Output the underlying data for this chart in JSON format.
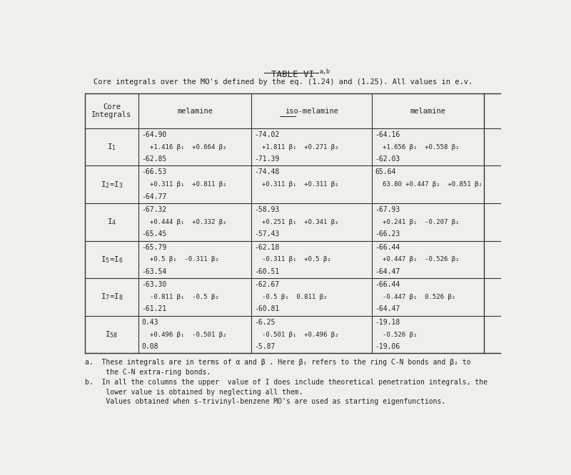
{
  "title": "TABLE VI",
  "title_superscript": "a,b",
  "subtitle": "Core integrals over the MO's defined by the eq. (1.24) and (1.25). All values in e.v.",
  "col_headers": [
    "Core\nIntegrals",
    "melamine",
    "iso-melamine",
    "melamine"
  ],
  "rows": [
    {
      "label": "I$_1$",
      "col1": [
        "-64.90",
        "+1.416 β₁  +0.664 β₂",
        "-62.85"
      ],
      "col2": [
        "-74.02",
        "+1.811 β₁  +0.271 β₂",
        "-71.39"
      ],
      "col3": [
        "-64.16",
        "+1.656 β₁  +0.558 β₂",
        "-62.03"
      ]
    },
    {
      "label": "I$_2$=I$_3$",
      "col1": [
        "-66.53",
        "+0.311 β₁  +0.811 β₂",
        "-64.77"
      ],
      "col2": [
        "-74.48",
        "+0.311 β₁  +0.311 β₂",
        ""
      ],
      "col3": [
        "65.64",
        "63.80 +0.447 β₁  +0.851 β₂",
        ""
      ]
    },
    {
      "label": "I$_4$",
      "col1": [
        "-67.32",
        "+0.444 β₁  +0.332 β₂",
        "-65.45"
      ],
      "col2": [
        "-58.93",
        "+0.251 β₁  +0.341 β₂",
        "-57.43"
      ],
      "col3": [
        "-67.93",
        "+0.241 β₁  -0.207 β₂",
        "-66.23"
      ]
    },
    {
      "label": "I$_5$=I$_6$",
      "col1": [
        "-65.79",
        "+0.5 β₁  -0.311 β₂",
        "-63.54"
      ],
      "col2": [
        "-62.18",
        "-0.311 β₁  +0.5 β₂",
        "-60.51"
      ],
      "col3": [
        "-66.44",
        "+0.447 β₁  -0.526 β₂",
        "-64.47"
      ]
    },
    {
      "label": "I$_7$=I$_8$",
      "col1": [
        "-63.30",
        "-0.811 β₁  -0.5 β₂",
        "-61.21"
      ],
      "col2": [
        "-62.67",
        "-0.5 β₁  0.811 β₂",
        "-60.81"
      ],
      "col3": [
        "-66.44",
        "-0.447 β₁  0.526 β₂",
        "-64.47"
      ]
    },
    {
      "label": "I$_{58}$",
      "col1": [
        "0.43",
        "+0.496 β₁  -0.501 β₂",
        "0.08"
      ],
      "col2": [
        "-6.25",
        "-0.501 β₁  +0.496 β₂",
        "-5.87"
      ],
      "col3": [
        "-19.18",
        "-0.526 β₂",
        "-19.06"
      ]
    }
  ],
  "footnotes": [
    "a.  These integrals are in terms of α and β . Here β₁ refers to the ring C-N bonds and β₂ to",
    "     the C-N extra-ring bonds.",
    "b.  In all the columns the upper  value of I does include theoretical penetration integrals, the",
    "     lower value is obtained by neglecting all them.",
    "     Values obtained when s-trivinyl-benzene MO's are used as starting eigenfunctions."
  ],
  "bg_color": "#f0f0eb",
  "table_line_color": "#333333",
  "text_color": "#222222"
}
